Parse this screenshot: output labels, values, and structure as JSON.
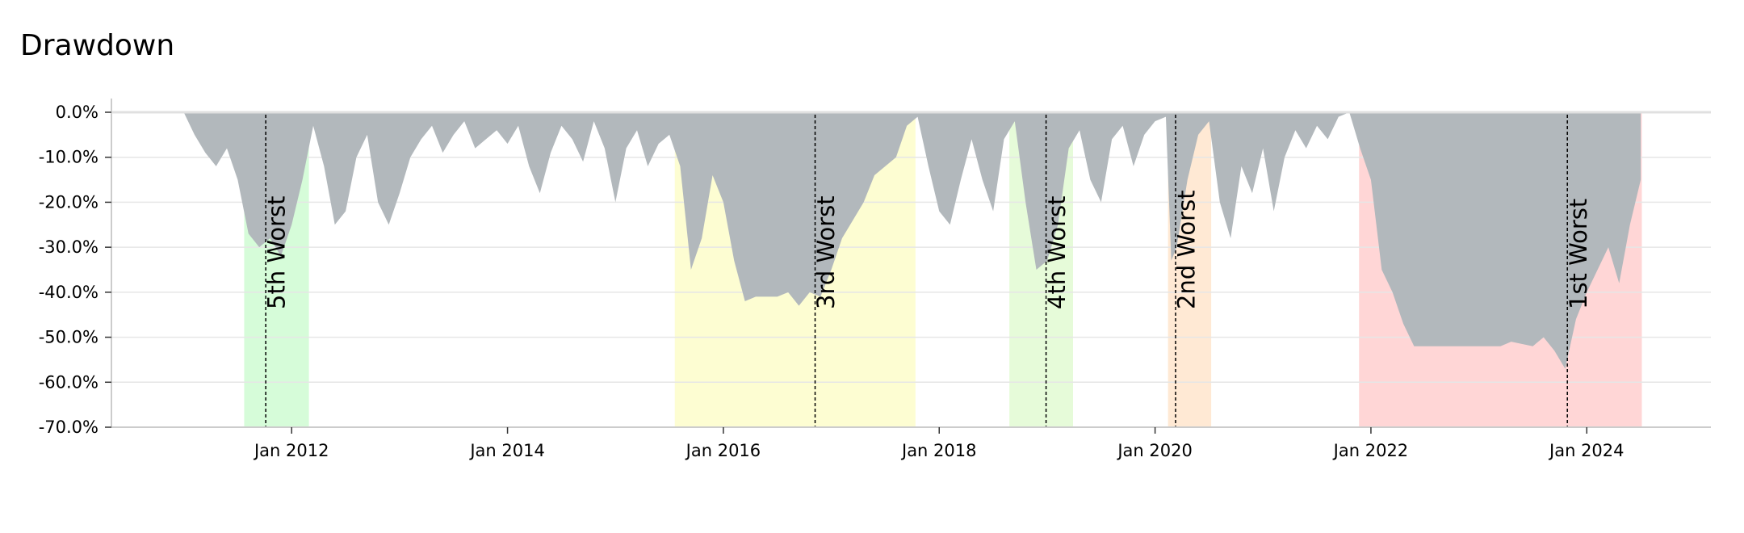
{
  "chart_data": {
    "type": "area",
    "title": "Drawdown",
    "x": [
      2011.0,
      2011.1,
      2011.2,
      2011.3,
      2011.4,
      2011.5,
      2011.6,
      2011.7,
      2011.8,
      2011.9,
      2012.0,
      2012.1,
      2012.2,
      2012.3,
      2012.4,
      2012.5,
      2012.6,
      2012.7,
      2012.8,
      2012.9,
      2013.0,
      2013.1,
      2013.2,
      2013.3,
      2013.4,
      2013.5,
      2013.6,
      2013.7,
      2013.8,
      2013.9,
      2014.0,
      2014.1,
      2014.2,
      2014.3,
      2014.4,
      2014.5,
      2014.6,
      2014.7,
      2014.8,
      2014.9,
      2015.0,
      2015.1,
      2015.2,
      2015.3,
      2015.4,
      2015.5,
      2015.6,
      2015.7,
      2015.8,
      2015.9,
      2016.0,
      2016.1,
      2016.2,
      2016.3,
      2016.4,
      2016.5,
      2016.6,
      2016.7,
      2016.8,
      2016.9,
      2017.0,
      2017.1,
      2017.2,
      2017.3,
      2017.4,
      2017.5,
      2017.6,
      2017.7,
      2017.8,
      2017.9,
      2018.0,
      2018.1,
      2018.2,
      2018.3,
      2018.4,
      2018.5,
      2018.6,
      2018.7,
      2018.8,
      2018.9,
      2019.0,
      2019.1,
      2019.2,
      2019.3,
      2019.4,
      2019.5,
      2019.6,
      2019.7,
      2019.8,
      2019.9,
      2020.0,
      2020.1,
      2020.15,
      2020.2,
      2020.3,
      2020.4,
      2020.5,
      2020.6,
      2020.7,
      2020.8,
      2020.9,
      2021.0,
      2021.1,
      2021.2,
      2021.3,
      2021.4,
      2021.5,
      2021.6,
      2021.7,
      2021.8,
      2021.9,
      2022.0,
      2022.1,
      2022.2,
      2022.3,
      2022.4,
      2022.6,
      2022.8,
      2023.0,
      2023.2,
      2023.3,
      2023.5,
      2023.6,
      2023.7,
      2023.8,
      2023.9,
      2024.0,
      2024.1,
      2024.2,
      2024.3,
      2024.4,
      2024.5
    ],
    "series": [
      {
        "name": "Drawdown",
        "color": "#b2b8bc",
        "values": [
          0,
          -5,
          -9,
          -12,
          -8,
          -15,
          -27,
          -30,
          -28,
          -32,
          -25,
          -15,
          -3,
          -12,
          -25,
          -22,
          -10,
          -5,
          -20,
          -25,
          -18,
          -10,
          -6,
          -3,
          -9,
          -5,
          -2,
          -8,
          -6,
          -4,
          -7,
          -3,
          -12,
          -18,
          -9,
          -3,
          -6,
          -11,
          -2,
          -8,
          -20,
          -8,
          -4,
          -12,
          -7,
          -5,
          -12,
          -35,
          -28,
          -14,
          -20,
          -33,
          -42,
          -41,
          -41,
          -41,
          -40,
          -43,
          -40,
          -41,
          -35,
          -28,
          -24,
          -20,
          -14,
          -12,
          -10,
          -3,
          -1,
          -12,
          -22,
          -25,
          -15,
          -6,
          -15,
          -22,
          -6,
          -2,
          -20,
          -35,
          -33,
          -25,
          -8,
          -4,
          -15,
          -20,
          -6,
          -3,
          -12,
          -5,
          -2,
          -1,
          -33,
          -30,
          -15,
          -5,
          -2,
          -20,
          -28,
          -12,
          -18,
          -8,
          -22,
          -10,
          -4,
          -8,
          -3,
          -6,
          -1,
          0,
          -8,
          -15,
          -35,
          -40,
          -47,
          -52,
          -52,
          -52,
          -52,
          -52,
          -51,
          -52,
          -50,
          -53,
          -57,
          -46,
          -40,
          -35,
          -30,
          -38,
          -25,
          -15
        ]
      }
    ],
    "annotations": [
      {
        "label": "5th Worst",
        "start": 2011.56,
        "end": 2012.16,
        "trough": 2011.76,
        "color": "#d6fcd9"
      },
      {
        "label": "3rd Worst",
        "start": 2015.55,
        "end": 2017.78,
        "trough": 2016.85,
        "color": "#fdfdd2"
      },
      {
        "label": "4th Worst",
        "start": 2018.65,
        "end": 2019.24,
        "trough": 2018.99,
        "color": "#e6fbd9"
      },
      {
        "label": "2nd Worst",
        "start": 2020.12,
        "end": 2020.52,
        "trough": 2020.19,
        "color": "#ffe9d4"
      },
      {
        "label": "1st Worst",
        "start": 2021.89,
        "end": 2024.51,
        "trough": 2023.82,
        "color": "#ffd6d6"
      }
    ],
    "xlim": [
      2010.33,
      2025.15
    ],
    "xticks": [
      {
        "value": 2012,
        "label": "Jan 2012"
      },
      {
        "value": 2014,
        "label": "Jan 2014"
      },
      {
        "value": 2016,
        "label": "Jan 2016"
      },
      {
        "value": 2018,
        "label": "Jan 2018"
      },
      {
        "value": 2020,
        "label": "Jan 2020"
      },
      {
        "value": 2022,
        "label": "Jan 2022"
      },
      {
        "value": 2024,
        "label": "Jan 2024"
      }
    ],
    "ylim": [
      -70,
      0
    ],
    "yticks": [
      {
        "value": 0,
        "label": "0.0%"
      },
      {
        "value": -10,
        "label": "-10.0%"
      },
      {
        "value": -20,
        "label": "-20.0%"
      },
      {
        "value": -30,
        "label": "-30.0%"
      },
      {
        "value": -40,
        "label": "-40.0%"
      },
      {
        "value": -50,
        "label": "-50.0%"
      },
      {
        "value": -60,
        "label": "-60.0%"
      },
      {
        "value": -70,
        "label": "-70.0%"
      }
    ],
    "grid": true
  }
}
